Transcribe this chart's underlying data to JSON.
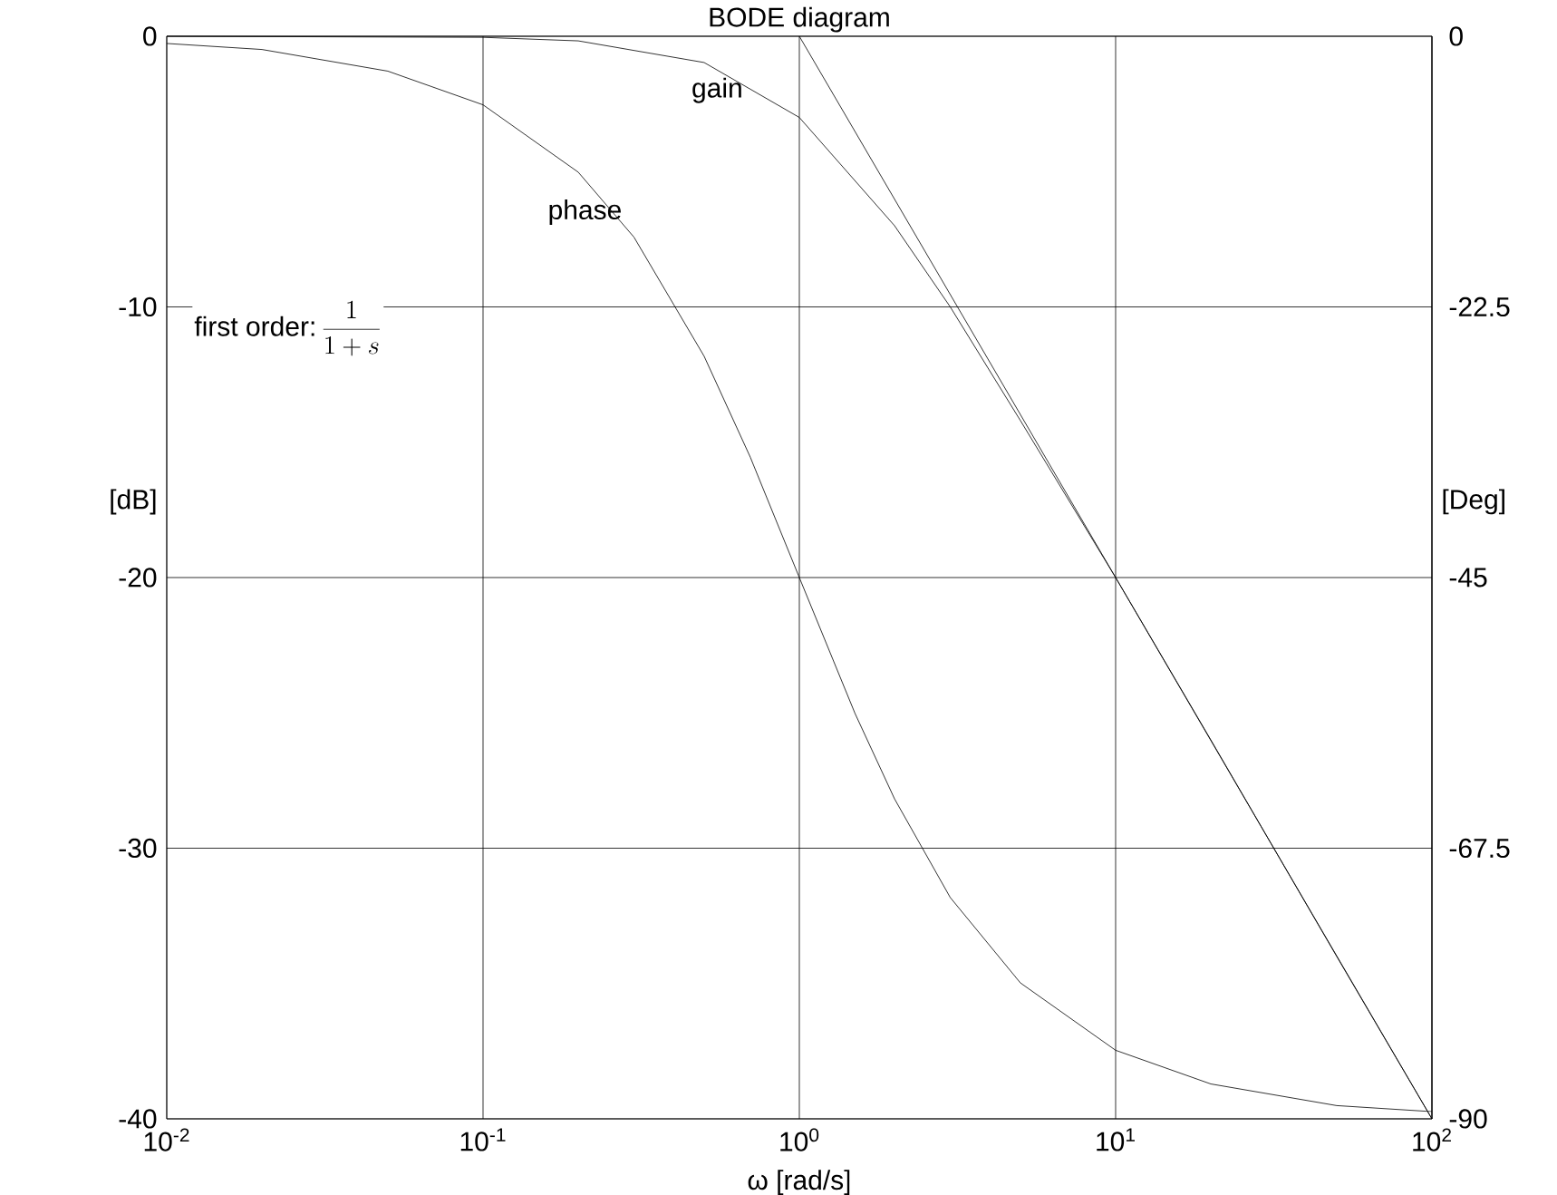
{
  "chart_data": {
    "type": "line",
    "title": "BODE diagram",
    "xlabel": "ω [rad/s]",
    "ylabel": "[dB]",
    "y2label": "[Deg]",
    "log": "x",
    "grid": true,
    "marker": "none",
    "line_style": "solid",
    "xlim": [
      0.01,
      100
    ],
    "xticks": [
      {
        "value": 0.01,
        "label": "10$^{-2}$"
      },
      {
        "value": 0.1,
        "label": "10$^{-1}$"
      },
      {
        "value": 1,
        "label": "10$^{0}$"
      },
      {
        "value": 10,
        "label": "10$^{1}$"
      },
      {
        "value": 100,
        "label": "10$^{2}$"
      }
    ],
    "ylim": [
      -40,
      0
    ],
    "yticks": [
      -40,
      -30,
      -20,
      -10,
      0
    ],
    "y2lim": [
      -90,
      0
    ],
    "y2ticks": [
      -90,
      -67.5,
      -45,
      -22.5,
      0
    ],
    "annotations": [
      "first order:",
      "\\frac{1}{1 + s}"
    ],
    "series": [
      {
        "name": "gain",
        "color": "#000000",
        "x": [
          0.01,
          0.1,
          0.2,
          0.5,
          1,
          2,
          3,
          5,
          10,
          20,
          50,
          100
        ],
        "values": [
          0,
          -0.04,
          -0.17,
          -0.97,
          -3.0,
          -7.0,
          -10.0,
          -14.2,
          -20.0,
          -26.0,
          -34.0,
          -40.0
        ]
      },
      {
        "name": "phase",
        "color": "#000000",
        "axis": "y2",
        "x": [
          0.01,
          0.02,
          0.05,
          0.1,
          0.2,
          0.3,
          0.5,
          0.7,
          1,
          1.5,
          2,
          3,
          5,
          10,
          20,
          50,
          100
        ],
        "values": [
          -0.6,
          -1.1,
          -2.9,
          -5.7,
          -11.3,
          -16.7,
          -26.6,
          -35,
          -45,
          -56.3,
          -63.4,
          -71.6,
          -78.7,
          -84.3,
          -87.1,
          -88.9,
          -89.4
        ]
      },
      {
        "color": "#000000",
        "x": [
          1,
          100
        ],
        "values": [
          0,
          -40
        ]
      }
    ]
  }
}
